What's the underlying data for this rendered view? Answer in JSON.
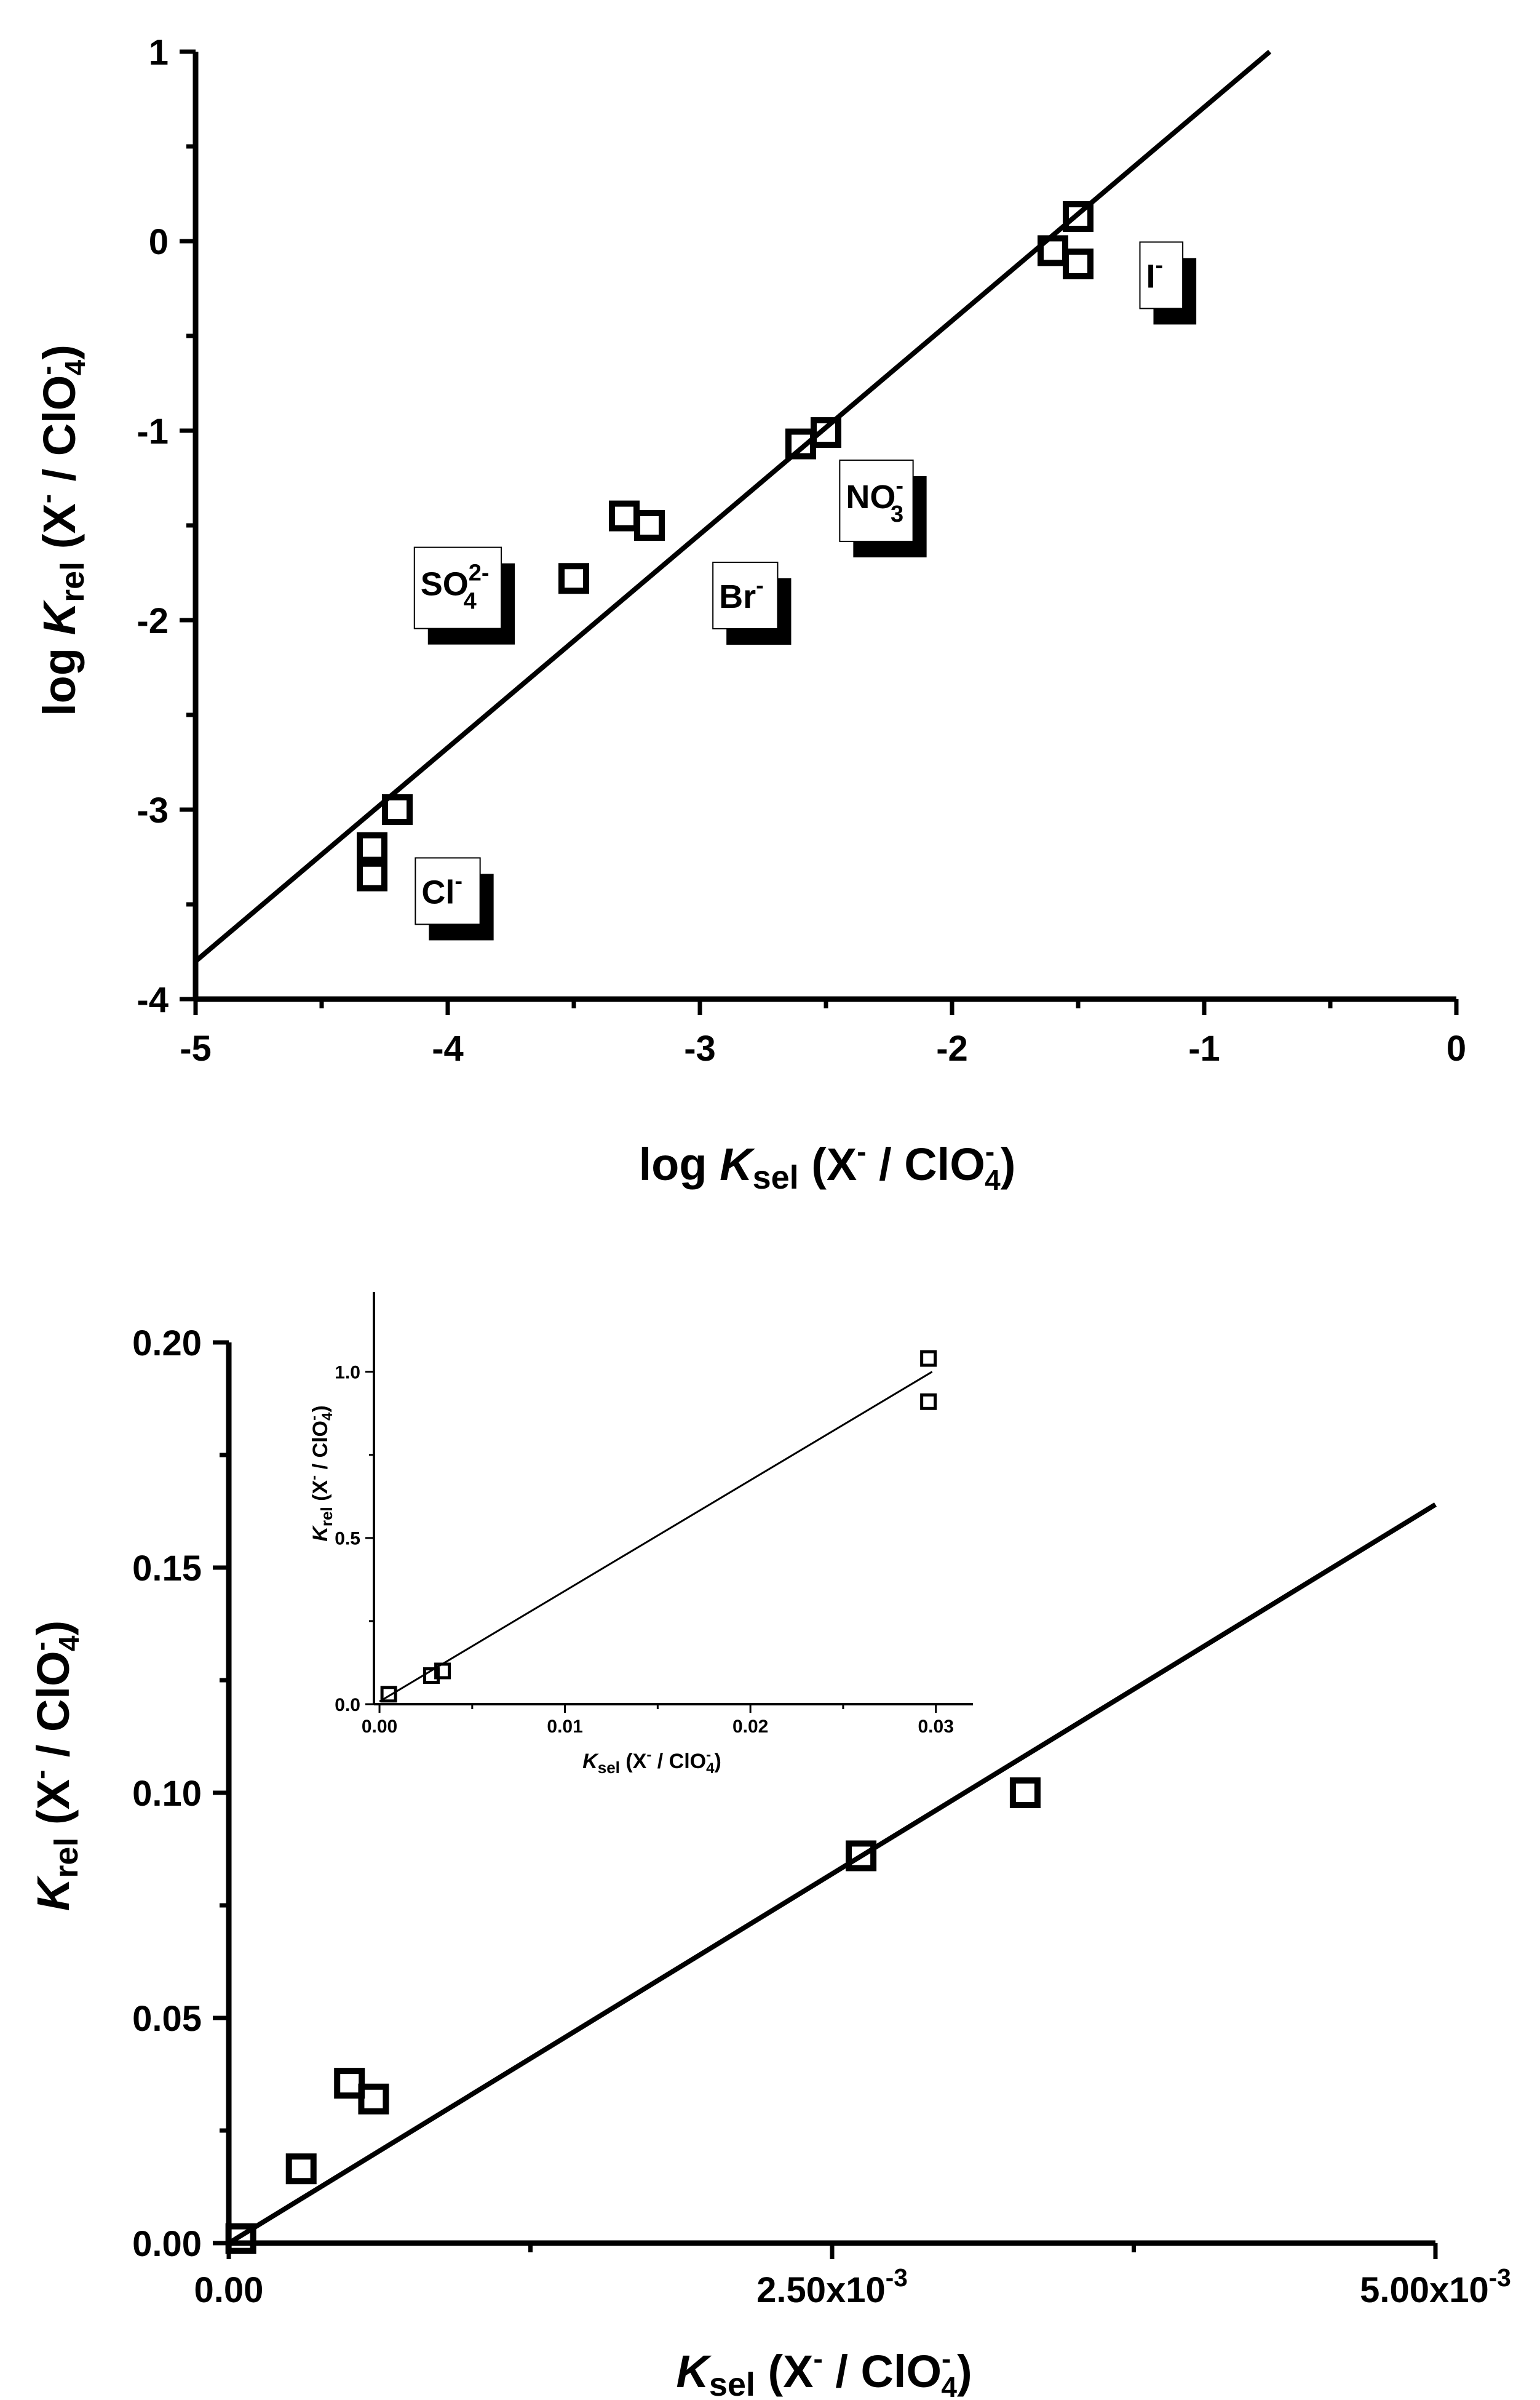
{
  "chart_data": [
    {
      "type": "scatter",
      "title": "",
      "xlabel": "log Ksel (X⁻ / ClO₄⁻)",
      "ylabel": "log Krel (X⁻ / ClO₄⁻)",
      "xlim": [
        -5,
        0
      ],
      "ylim": [
        -4,
        1
      ],
      "xticks": [
        -5,
        -4,
        -3,
        -2,
        -1,
        0
      ],
      "xtick_labels": [
        "-5",
        "-4",
        "-3",
        "-2",
        "-1",
        "0"
      ],
      "yticks": [
        -4,
        -3,
        -2,
        -1,
        0,
        1
      ],
      "ytick_labels": [
        "-4",
        "-3",
        "-2",
        "-1",
        "0",
        "1"
      ],
      "series": [
        {
          "name": "data",
          "marker": "open-square",
          "points": [
            {
              "x": -4.3,
              "y": -3.2
            },
            {
              "x": -4.3,
              "y": -3.35
            },
            {
              "x": -4.2,
              "y": -3.0
            },
            {
              "x": -3.5,
              "y": -1.78
            },
            {
              "x": -3.3,
              "y": -1.45
            },
            {
              "x": -3.2,
              "y": -1.5
            },
            {
              "x": -2.6,
              "y": -1.07
            },
            {
              "x": -2.5,
              "y": -1.01
            },
            {
              "x": -1.6,
              "y": -0.05
            },
            {
              "x": -1.5,
              "y": 0.13
            },
            {
              "x": -1.5,
              "y": -0.12
            }
          ]
        },
        {
          "name": "fit",
          "type": "line",
          "x": [
            -5,
            -0.74
          ],
          "y": [
            -3.8,
            1.0
          ]
        }
      ],
      "annotations": [
        {
          "id": "cl",
          "text": "Cl",
          "charge": "-",
          "x": -4.0,
          "y": -3.43
        },
        {
          "id": "so4",
          "text": "SO",
          "sub": "4",
          "charge": "2-",
          "x": -3.96,
          "y": -1.83
        },
        {
          "id": "br",
          "text": "Br",
          "charge": "-",
          "x": -2.82,
          "y": -1.87
        },
        {
          "id": "no3",
          "text": "NO",
          "sub": "3",
          "charge": "-",
          "x": -2.3,
          "y": -1.37
        },
        {
          "id": "i",
          "text": "I",
          "charge": "-",
          "x": -1.17,
          "y": -0.18
        }
      ]
    },
    {
      "type": "scatter",
      "title": "",
      "xlabel": "Ksel (X⁻ / ClO₄⁻)",
      "ylabel": "Krel (X⁻ / ClO₄⁻)",
      "xlim": [
        0,
        0.005
      ],
      "ylim": [
        0,
        0.2
      ],
      "xticks": [
        0,
        0.0025,
        0.005
      ],
      "xtick_labels": [
        "0.00",
        "2.50x10",
        "5.00x10"
      ],
      "xtick_exponents": [
        "",
        "-3",
        "-3"
      ],
      "yticks": [
        0,
        0.05,
        0.1,
        0.15,
        0.2
      ],
      "ytick_labels": [
        "0.00",
        "0.05",
        "0.10",
        "0.15",
        "0.20"
      ],
      "series": [
        {
          "name": "data",
          "marker": "open-square",
          "points": [
            {
              "x": 5e-05,
              "y": 0.001
            },
            {
              "x": 0.0003,
              "y": 0.0165
            },
            {
              "x": 0.0005,
              "y": 0.0355
            },
            {
              "x": 0.0006,
              "y": 0.032
            },
            {
              "x": 0.00262,
              "y": 0.086
            },
            {
              "x": 0.0033,
              "y": 0.1
            }
          ]
        },
        {
          "name": "fit",
          "type": "line",
          "x": [
            0,
            0.005
          ],
          "y": [
            0,
            0.164
          ]
        }
      ],
      "inset": {
        "type": "scatter",
        "xlabel": "Ksel (X⁻ / ClO₄⁻)",
        "ylabel": "Krel (X⁻ / ClO₄⁻)",
        "xlim": [
          -0.0003,
          0.032
        ],
        "ylim": [
          0,
          1.24
        ],
        "xticks": [
          0,
          0.01,
          0.02,
          0.03
        ],
        "xtick_labels": [
          "0.00",
          "0.01",
          "0.02",
          "0.03"
        ],
        "yticks": [
          0,
          0.5,
          1.0
        ],
        "ytick_labels": [
          "0.0",
          "0.5",
          "1.0"
        ],
        "points": [
          {
            "x": 0.0005,
            "y": 0.03
          },
          {
            "x": 0.0028,
            "y": 0.086
          },
          {
            "x": 0.0034,
            "y": 0.1
          },
          {
            "x": 0.0296,
            "y": 1.04
          },
          {
            "x": 0.0296,
            "y": 0.91
          }
        ],
        "fit": {
          "x": [
            0,
            0.0298
          ],
          "y": [
            0.008,
            1.0
          ]
        }
      }
    }
  ],
  "text": {
    "log": "log",
    "K": "K",
    "rel": "rel",
    "sel": "sel",
    "paren_open": " (X",
    "minus": "-",
    "slash_clo": " / ClO",
    "four": "4",
    "paren_close": ")"
  }
}
